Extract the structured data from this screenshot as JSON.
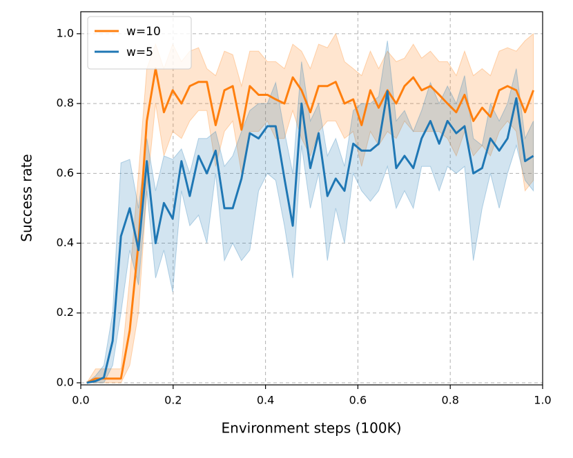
{
  "chart_data": {
    "type": "line",
    "xlabel": "Environment steps (100K)",
    "ylabel": "Success rate",
    "x": [
      0.013,
      0.032,
      0.05,
      0.069,
      0.087,
      0.106,
      0.125,
      0.143,
      0.162,
      0.18,
      0.199,
      0.218,
      0.236,
      0.255,
      0.273,
      0.292,
      0.311,
      0.329,
      0.348,
      0.366,
      0.385,
      0.404,
      0.422,
      0.441,
      0.459,
      0.478,
      0.497,
      0.515,
      0.534,
      0.552,
      0.571,
      0.59,
      0.608,
      0.627,
      0.645,
      0.664,
      0.683,
      0.701,
      0.72,
      0.738,
      0.757,
      0.776,
      0.794,
      0.813,
      0.831,
      0.85,
      0.869,
      0.887,
      0.906,
      0.924,
      0.943,
      0.962,
      0.98
    ],
    "series": [
      {
        "name": "w=10",
        "color": "#ff7f0e",
        "values": [
          0,
          0.012,
          0.012,
          0.012,
          0.012,
          0.15,
          0.4,
          0.75,
          0.9,
          0.775,
          0.838,
          0.8,
          0.85,
          0.862,
          0.862,
          0.738,
          0.838,
          0.85,
          0.725,
          0.85,
          0.825,
          0.825,
          0.812,
          0.8,
          0.875,
          0.838,
          0.775,
          0.85,
          0.85,
          0.862,
          0.8,
          0.812,
          0.738,
          0.838,
          0.788,
          0.838,
          0.8,
          0.85,
          0.875,
          0.838,
          0.85,
          0.825,
          0.8,
          0.775,
          0.825,
          0.75,
          0.788,
          0.762,
          0.838,
          0.85,
          0.838,
          0.775,
          0.838
        ],
        "lower": [
          0,
          0,
          0,
          0,
          0,
          0.05,
          0.2,
          0.55,
          0.8,
          0.65,
          0.72,
          0.7,
          0.75,
          0.78,
          0.78,
          0.62,
          0.72,
          0.75,
          0.6,
          0.72,
          0.72,
          0.75,
          0.7,
          0.7,
          0.78,
          0.7,
          0.65,
          0.72,
          0.75,
          0.75,
          0.7,
          0.72,
          0.62,
          0.72,
          0.68,
          0.72,
          0.7,
          0.75,
          0.72,
          0.72,
          0.72,
          0.72,
          0.7,
          0.65,
          0.72,
          0.65,
          0.68,
          0.65,
          0.72,
          0.75,
          0.72,
          0.55,
          0.58
        ],
        "upper": [
          0,
          0.04,
          0.04,
          0.04,
          0.04,
          0.3,
          0.6,
          0.9,
          0.97,
          0.9,
          0.97,
          0.92,
          0.95,
          0.96,
          0.9,
          0.88,
          0.95,
          0.94,
          0.85,
          0.95,
          0.95,
          0.92,
          0.92,
          0.9,
          0.97,
          0.95,
          0.9,
          0.97,
          0.96,
          1.0,
          0.92,
          0.9,
          0.88,
          0.95,
          0.9,
          0.95,
          0.92,
          0.93,
          0.97,
          0.93,
          0.95,
          0.92,
          0.92,
          0.88,
          0.95,
          0.88,
          0.9,
          0.88,
          0.95,
          0.96,
          0.95,
          0.98,
          1.0
        ]
      },
      {
        "name": "w=5",
        "color": "#1f77b4",
        "values": [
          0,
          0.005,
          0.015,
          0.12,
          0.42,
          0.5,
          0.38,
          0.635,
          0.4,
          0.515,
          0.47,
          0.635,
          0.535,
          0.65,
          0.6,
          0.665,
          0.5,
          0.5,
          0.585,
          0.715,
          0.7,
          0.735,
          0.735,
          0.585,
          0.45,
          0.8,
          0.615,
          0.715,
          0.535,
          0.585,
          0.55,
          0.685,
          0.665,
          0.665,
          0.685,
          0.835,
          0.615,
          0.65,
          0.615,
          0.7,
          0.75,
          0.685,
          0.75,
          0.715,
          0.735,
          0.6,
          0.615,
          0.7,
          0.665,
          0.7,
          0.815,
          0.635,
          0.65
        ],
        "lower": [
          0,
          0,
          0,
          0.05,
          0.2,
          0.38,
          0.28,
          0.55,
          0.3,
          0.38,
          0.26,
          0.55,
          0.45,
          0.48,
          0.4,
          0.6,
          0.35,
          0.4,
          0.35,
          0.38,
          0.55,
          0.6,
          0.58,
          0.45,
          0.3,
          0.68,
          0.5,
          0.6,
          0.35,
          0.5,
          0.4,
          0.6,
          0.55,
          0.52,
          0.55,
          0.62,
          0.5,
          0.55,
          0.5,
          0.62,
          0.62,
          0.55,
          0.62,
          0.6,
          0.62,
          0.35,
          0.5,
          0.6,
          0.5,
          0.6,
          0.68,
          0.58,
          0.55
        ],
        "upper": [
          0,
          0.02,
          0.05,
          0.2,
          0.63,
          0.64,
          0.5,
          0.7,
          0.55,
          0.65,
          0.64,
          0.67,
          0.6,
          0.7,
          0.7,
          0.72,
          0.62,
          0.65,
          0.72,
          0.78,
          0.8,
          0.8,
          0.86,
          0.72,
          0.6,
          0.92,
          0.75,
          0.8,
          0.65,
          0.7,
          0.62,
          0.78,
          0.8,
          0.8,
          0.82,
          0.98,
          0.75,
          0.78,
          0.72,
          0.78,
          0.86,
          0.8,
          0.85,
          0.8,
          0.88,
          0.7,
          0.68,
          0.8,
          0.75,
          0.8,
          0.9,
          0.7,
          0.75
        ]
      }
    ],
    "xlim": [
      0,
      1
    ],
    "ylim": [
      -0.006,
      1.063
    ],
    "xticks": [
      {
        "value": 0,
        "label": "0.0"
      },
      0.2,
      0.4,
      0.6,
      0.8,
      {
        "value": 1,
        "label": "1.0"
      }
    ],
    "yticks": [
      {
        "value": 0,
        "label": "0.0"
      },
      0.2,
      0.4,
      0.6,
      0.8,
      {
        "value": 1,
        "label": "1.0"
      }
    ],
    "grid": true,
    "legend": "upper left"
  }
}
